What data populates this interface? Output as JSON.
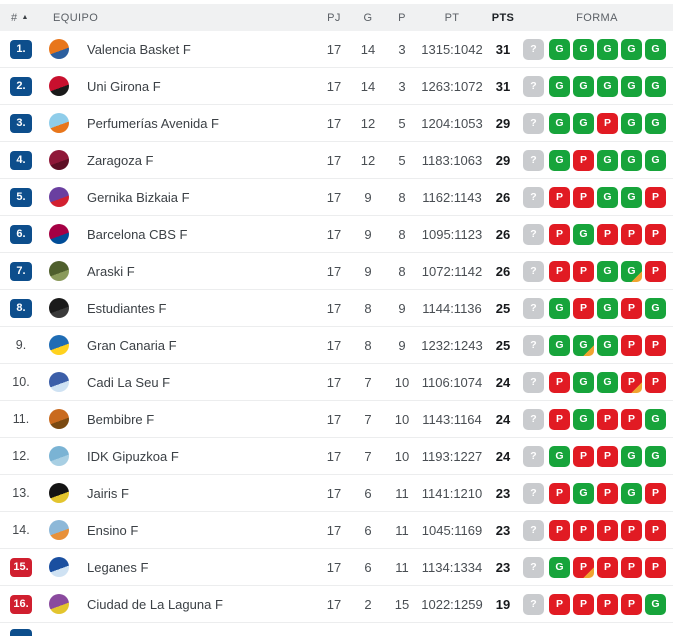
{
  "colors": {
    "badge_blue": "#0d4e8c",
    "badge_red": "#d01f2f",
    "form_win_green": "#17a43b",
    "form_loss_red": "#e11b23",
    "form_unknown_gray": "#c9cbce",
    "form_overtime_orange": "#f0a431",
    "header_bg": "#f0f1f2"
  },
  "table": {
    "columns": {
      "rank": "#",
      "sort_icon": "▲",
      "equipo": "EQUIPO",
      "pj": "PJ",
      "g": "G",
      "p": "P",
      "pt": "PT",
      "pts": "PTS",
      "forma": "FORMA"
    },
    "rows": [
      {
        "rank": "1.",
        "badge": "blue",
        "team": "Valencia Basket F",
        "logo_colors": [
          "#e8761b",
          "#2c5f9e"
        ],
        "pj": "17",
        "g": "14",
        "p": "3",
        "pt": "1315:1042",
        "pts": "31",
        "form": [
          {
            "label": "?",
            "result": "unknown",
            "ot": false
          },
          {
            "label": "G",
            "result": "win",
            "ot": false
          },
          {
            "label": "G",
            "result": "win",
            "ot": false
          },
          {
            "label": "G",
            "result": "win",
            "ot": false
          },
          {
            "label": "G",
            "result": "win",
            "ot": false
          },
          {
            "label": "G",
            "result": "win",
            "ot": false
          }
        ]
      },
      {
        "rank": "2.",
        "badge": "blue",
        "team": "Uni Girona F",
        "logo_colors": [
          "#c8102e",
          "#1a1a1a"
        ],
        "pj": "17",
        "g": "14",
        "p": "3",
        "pt": "1263:1072",
        "pts": "31",
        "form": [
          {
            "label": "?",
            "result": "unknown",
            "ot": false
          },
          {
            "label": "G",
            "result": "win",
            "ot": false
          },
          {
            "label": "G",
            "result": "win",
            "ot": false
          },
          {
            "label": "G",
            "result": "win",
            "ot": false
          },
          {
            "label": "G",
            "result": "win",
            "ot": false
          },
          {
            "label": "G",
            "result": "win",
            "ot": false
          }
        ]
      },
      {
        "rank": "3.",
        "badge": "blue",
        "team": "Perfumerías Avenida F",
        "logo_colors": [
          "#8fcdea",
          "#e8761b"
        ],
        "pj": "17",
        "g": "12",
        "p": "5",
        "pt": "1204:1053",
        "pts": "29",
        "form": [
          {
            "label": "?",
            "result": "unknown",
            "ot": false
          },
          {
            "label": "G",
            "result": "win",
            "ot": false
          },
          {
            "label": "G",
            "result": "win",
            "ot": false
          },
          {
            "label": "P",
            "result": "loss",
            "ot": false
          },
          {
            "label": "G",
            "result": "win",
            "ot": false
          },
          {
            "label": "G",
            "result": "win",
            "ot": false
          }
        ]
      },
      {
        "rank": "4.",
        "badge": "blue",
        "team": "Zaragoza F",
        "logo_colors": [
          "#8f1838",
          "#5e0f24"
        ],
        "pj": "17",
        "g": "12",
        "p": "5",
        "pt": "1183:1063",
        "pts": "29",
        "form": [
          {
            "label": "?",
            "result": "unknown",
            "ot": false
          },
          {
            "label": "G",
            "result": "win",
            "ot": false
          },
          {
            "label": "P",
            "result": "loss",
            "ot": false
          },
          {
            "label": "G",
            "result": "win",
            "ot": false
          },
          {
            "label": "G",
            "result": "win",
            "ot": false
          },
          {
            "label": "G",
            "result": "win",
            "ot": false
          }
        ]
      },
      {
        "rank": "5.",
        "badge": "blue",
        "team": "Gernika Bizkaia F",
        "logo_colors": [
          "#6a3fa0",
          "#d22030"
        ],
        "pj": "17",
        "g": "9",
        "p": "8",
        "pt": "1162:1143",
        "pts": "26",
        "form": [
          {
            "label": "?",
            "result": "unknown",
            "ot": false
          },
          {
            "label": "P",
            "result": "loss",
            "ot": false
          },
          {
            "label": "P",
            "result": "loss",
            "ot": false
          },
          {
            "label": "G",
            "result": "win",
            "ot": false
          },
          {
            "label": "G",
            "result": "win",
            "ot": false
          },
          {
            "label": "P",
            "result": "loss",
            "ot": false
          }
        ]
      },
      {
        "rank": "6.",
        "badge": "blue",
        "team": "Barcelona CBS F",
        "logo_colors": [
          "#a50044",
          "#004d98"
        ],
        "pj": "17",
        "g": "9",
        "p": "8",
        "pt": "1095:1123",
        "pts": "26",
        "form": [
          {
            "label": "?",
            "result": "unknown",
            "ot": false
          },
          {
            "label": "P",
            "result": "loss",
            "ot": false
          },
          {
            "label": "G",
            "result": "win",
            "ot": false
          },
          {
            "label": "P",
            "result": "loss",
            "ot": false
          },
          {
            "label": "P",
            "result": "loss",
            "ot": false
          },
          {
            "label": "P",
            "result": "loss",
            "ot": false
          }
        ]
      },
      {
        "rank": "7.",
        "badge": "blue",
        "team": "Araski F",
        "logo_colors": [
          "#4f5f2d",
          "#8a9a5b"
        ],
        "pj": "17",
        "g": "9",
        "p": "8",
        "pt": "1072:1142",
        "pts": "26",
        "form": [
          {
            "label": "?",
            "result": "unknown",
            "ot": false
          },
          {
            "label": "P",
            "result": "loss",
            "ot": false
          },
          {
            "label": "P",
            "result": "loss",
            "ot": false
          },
          {
            "label": "G",
            "result": "win",
            "ot": false
          },
          {
            "label": "G",
            "result": "win",
            "ot": true
          },
          {
            "label": "P",
            "result": "loss",
            "ot": false
          }
        ]
      },
      {
        "rank": "8.",
        "badge": "blue",
        "team": "Estudiantes F",
        "logo_colors": [
          "#1a1a1a",
          "#3a3a3a"
        ],
        "pj": "17",
        "g": "8",
        "p": "9",
        "pt": "1144:1136",
        "pts": "25",
        "form": [
          {
            "label": "?",
            "result": "unknown",
            "ot": false
          },
          {
            "label": "G",
            "result": "win",
            "ot": false
          },
          {
            "label": "P",
            "result": "loss",
            "ot": false
          },
          {
            "label": "G",
            "result": "win",
            "ot": false
          },
          {
            "label": "P",
            "result": "loss",
            "ot": false
          },
          {
            "label": "G",
            "result": "win",
            "ot": false
          }
        ]
      },
      {
        "rank": "9.",
        "badge": "none",
        "team": "Gran Canaria F",
        "logo_colors": [
          "#1f6cb4",
          "#ffd21e"
        ],
        "pj": "17",
        "g": "8",
        "p": "9",
        "pt": "1232:1243",
        "pts": "25",
        "form": [
          {
            "label": "?",
            "result": "unknown",
            "ot": false
          },
          {
            "label": "G",
            "result": "win",
            "ot": false
          },
          {
            "label": "G",
            "result": "win",
            "ot": true
          },
          {
            "label": "G",
            "result": "win",
            "ot": false
          },
          {
            "label": "P",
            "result": "loss",
            "ot": false
          },
          {
            "label": "P",
            "result": "loss",
            "ot": false
          }
        ]
      },
      {
        "rank": "10.",
        "badge": "none",
        "team": "Cadi La Seu F",
        "logo_colors": [
          "#3b5ea8",
          "#cfe2f3"
        ],
        "pj": "17",
        "g": "7",
        "p": "10",
        "pt": "1106:1074",
        "pts": "24",
        "form": [
          {
            "label": "?",
            "result": "unknown",
            "ot": false
          },
          {
            "label": "P",
            "result": "loss",
            "ot": false
          },
          {
            "label": "G",
            "result": "win",
            "ot": false
          },
          {
            "label": "G",
            "result": "win",
            "ot": false
          },
          {
            "label": "P",
            "result": "loss",
            "ot": true
          },
          {
            "label": "P",
            "result": "loss",
            "ot": false
          }
        ]
      },
      {
        "rank": "11.",
        "badge": "none",
        "team": "Bembibre F",
        "logo_colors": [
          "#c96a1e",
          "#7a4a12"
        ],
        "pj": "17",
        "g": "7",
        "p": "10",
        "pt": "1143:1164",
        "pts": "24",
        "form": [
          {
            "label": "?",
            "result": "unknown",
            "ot": false
          },
          {
            "label": "P",
            "result": "loss",
            "ot": false
          },
          {
            "label": "G",
            "result": "win",
            "ot": false
          },
          {
            "label": "P",
            "result": "loss",
            "ot": false
          },
          {
            "label": "P",
            "result": "loss",
            "ot": false
          },
          {
            "label": "G",
            "result": "win",
            "ot": false
          }
        ]
      },
      {
        "rank": "12.",
        "badge": "none",
        "team": "IDK Gipuzkoa F",
        "logo_colors": [
          "#7ab3d4",
          "#a8cfe3"
        ],
        "pj": "17",
        "g": "7",
        "p": "10",
        "pt": "1193:1227",
        "pts": "24",
        "form": [
          {
            "label": "?",
            "result": "unknown",
            "ot": false
          },
          {
            "label": "G",
            "result": "win",
            "ot": false
          },
          {
            "label": "P",
            "result": "loss",
            "ot": false
          },
          {
            "label": "P",
            "result": "loss",
            "ot": false
          },
          {
            "label": "G",
            "result": "win",
            "ot": false
          },
          {
            "label": "G",
            "result": "win",
            "ot": false
          }
        ]
      },
      {
        "rank": "13.",
        "badge": "none",
        "team": "Jairis F",
        "logo_colors": [
          "#141414",
          "#e3c52e"
        ],
        "pj": "17",
        "g": "6",
        "p": "11",
        "pt": "1141:1210",
        "pts": "23",
        "form": [
          {
            "label": "?",
            "result": "unknown",
            "ot": false
          },
          {
            "label": "P",
            "result": "loss",
            "ot": false
          },
          {
            "label": "G",
            "result": "win",
            "ot": false
          },
          {
            "label": "P",
            "result": "loss",
            "ot": false
          },
          {
            "label": "G",
            "result": "win",
            "ot": false
          },
          {
            "label": "P",
            "result": "loss",
            "ot": false
          }
        ]
      },
      {
        "rank": "14.",
        "badge": "none",
        "team": "Ensino F",
        "logo_colors": [
          "#8db8d8",
          "#e8913a"
        ],
        "pj": "17",
        "g": "6",
        "p": "11",
        "pt": "1045:1169",
        "pts": "23",
        "form": [
          {
            "label": "?",
            "result": "unknown",
            "ot": false
          },
          {
            "label": "P",
            "result": "loss",
            "ot": false
          },
          {
            "label": "P",
            "result": "loss",
            "ot": false
          },
          {
            "label": "P",
            "result": "loss",
            "ot": false
          },
          {
            "label": "P",
            "result": "loss",
            "ot": false
          },
          {
            "label": "P",
            "result": "loss",
            "ot": false
          }
        ]
      },
      {
        "rank": "15.",
        "badge": "red",
        "team": "Leganes F",
        "logo_colors": [
          "#1a4fa0",
          "#cfe2f3"
        ],
        "pj": "17",
        "g": "6",
        "p": "11",
        "pt": "1134:1334",
        "pts": "23",
        "form": [
          {
            "label": "?",
            "result": "unknown",
            "ot": false
          },
          {
            "label": "G",
            "result": "win",
            "ot": false
          },
          {
            "label": "P",
            "result": "loss",
            "ot": true
          },
          {
            "label": "P",
            "result": "loss",
            "ot": false
          },
          {
            "label": "P",
            "result": "loss",
            "ot": false
          },
          {
            "label": "P",
            "result": "loss",
            "ot": false
          }
        ]
      },
      {
        "rank": "16.",
        "badge": "red",
        "team": "Ciudad de La Laguna F",
        "logo_colors": [
          "#8a4a9e",
          "#e3c52e"
        ],
        "pj": "17",
        "g": "2",
        "p": "15",
        "pt": "1022:1259",
        "pts": "19",
        "form": [
          {
            "label": "?",
            "result": "unknown",
            "ot": false
          },
          {
            "label": "P",
            "result": "loss",
            "ot": false
          },
          {
            "label": "P",
            "result": "loss",
            "ot": false
          },
          {
            "label": "P",
            "result": "loss",
            "ot": false
          },
          {
            "label": "P",
            "result": "loss",
            "ot": false
          },
          {
            "label": "G",
            "result": "win",
            "ot": false
          }
        ]
      }
    ],
    "partial_next_row": {
      "badge": "blue"
    }
  }
}
